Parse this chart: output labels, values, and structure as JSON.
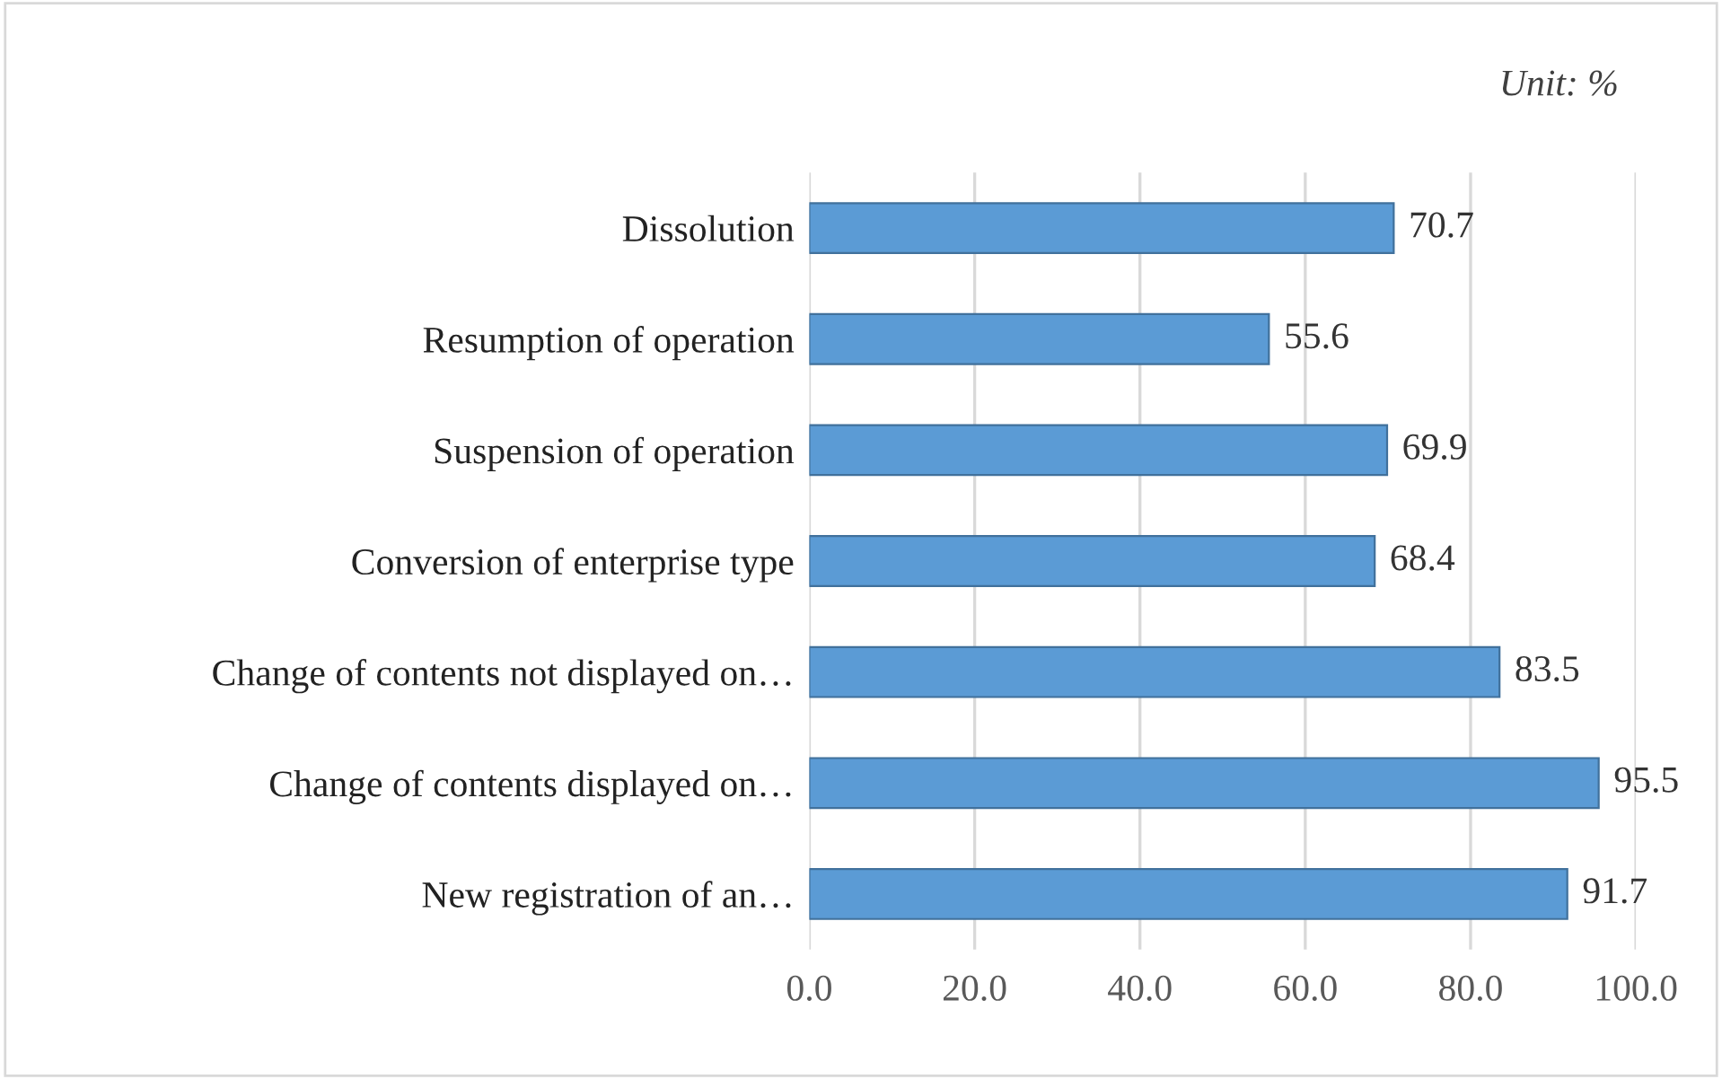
{
  "chart_data": {
    "type": "bar",
    "orientation": "horizontal",
    "categories": [
      "Dissolution",
      "Resumption of operation",
      "Suspension of operation",
      "Conversion of enterprise type",
      "Change of contents not displayed on…",
      "Change of contents displayed on…",
      "New registration of an…"
    ],
    "values": [
      70.7,
      55.6,
      69.9,
      68.4,
      83.5,
      95.5,
      91.7
    ],
    "color": "#5b9bd5",
    "xlim": [
      0,
      100
    ],
    "xticks": [
      {
        "value": 0,
        "label": "0.0"
      },
      {
        "value": 20,
        "label": "20.0"
      },
      {
        "value": 40,
        "label": "40.0"
      },
      {
        "value": 60,
        "label": "60.0"
      },
      {
        "value": 80,
        "label": "80.0"
      },
      {
        "value": 100,
        "label": "100.0"
      }
    ],
    "grid": "x",
    "data_labels": true,
    "annotations": [
      "Unit: %"
    ]
  }
}
